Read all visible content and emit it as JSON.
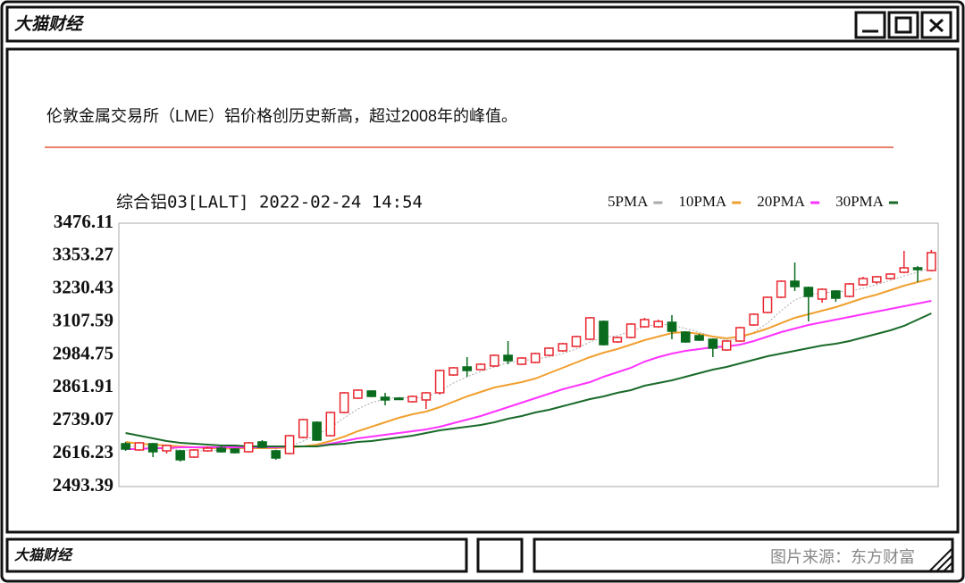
{
  "window": {
    "title": "大猫财经"
  },
  "headline": "伦敦金属交易所（LME）铝价格创历史新高，超过2008年的峰值。",
  "footer": {
    "brand": "大猫财经",
    "source": "图片来源：东方财富"
  },
  "chart_data": {
    "type": "candlestick",
    "title": "综合铝03[LALT] 2022-02-24 14:54",
    "ylim": [
      2493.39,
      3476.11
    ],
    "yticks": [
      3476.11,
      3353.27,
      3230.43,
      3107.59,
      2984.75,
      2861.91,
      2739.07,
      2616.23,
      2493.39
    ],
    "grid": false,
    "up_color": "#e8262e",
    "down_color": "#0a6b1e",
    "open": [
      2653.3,
      2630,
      2653.3,
      2626.7,
      2626.7,
      2603.3,
      2626.7,
      2636.7,
      2633.4,
      2623.3,
      2660,
      2626.7,
      2616.7,
      2676.7,
      2733.3,
      2683.3,
      2769.9,
      2823.2,
      2849.9,
      2826.6,
      2823.2,
      2809.9,
      2816.6,
      2843.2,
      2909.8,
      2939.8,
      2929.8,
      2943.2,
      2983.1,
      2949.8,
      2956.5,
      2983.1,
      2999.8,
      3016.4,
      3043.1,
      3109.7,
      3033.1,
      3049.8,
      3089.7,
      3089.7,
      3106.4,
      3069.7,
      3056.4,
      3043.1,
      3003.1,
      3036.4,
      3096.4,
      3143.0,
      3199.7,
      3259.6,
      3236.3,
      3193.0,
      3223.0,
      3203.0,
      3246.3,
      3256.3,
      3269.6,
      3293.0,
      3309.6,
      3299.6
    ],
    "high": [
      2660,
      2660,
      2656.7,
      2650,
      2630,
      2633.4,
      2643.3,
      2643.3,
      2636.7,
      2660,
      2666.7,
      2630,
      2686.6,
      2746.6,
      2736.6,
      2773.3,
      2846.6,
      2856.5,
      2853.2,
      2843.2,
      2826.6,
      2833.2,
      2846.6,
      2929.8,
      2939.8,
      2976.5,
      2953.2,
      2986.4,
      3036.4,
      2976.5,
      2993.1,
      3013.1,
      3029.7,
      3056.4,
      3126.4,
      3113.1,
      3053.1,
      3103.1,
      3123.1,
      3116.4,
      3133.1,
      3073.1,
      3063.1,
      3046.4,
      3039.8,
      3089.7,
      3139.7,
      3203.0,
      3263.0,
      3329.6,
      3239.6,
      3233.0,
      3226.3,
      3253.0,
      3276.3,
      3279.6,
      3289.6,
      3372.9,
      3316.3,
      3376.2
    ],
    "low": [
      2626.7,
      2626.7,
      2603.3,
      2616.7,
      2586.7,
      2600,
      2623.3,
      2620,
      2616.7,
      2620,
      2636.7,
      2593.4,
      2613.3,
      2673.3,
      2663.3,
      2680,
      2766.6,
      2819.9,
      2826.6,
      2796.6,
      2816.6,
      2806.6,
      2783.2,
      2836.6,
      2906.5,
      2903.2,
      2926.5,
      2939.8,
      2949.8,
      2946.5,
      2953.2,
      2979.8,
      2996.5,
      3013.1,
      3039.8,
      3019.8,
      3029.8,
      3046.4,
      3086.4,
      3086.4,
      3043.1,
      3029.8,
      3036.4,
      2976.5,
      2999.8,
      3033.1,
      3093.1,
      3139.7,
      3196.3,
      3223.0,
      3109.7,
      3179.7,
      3183.0,
      3199.7,
      3243.0,
      3249.6,
      3266.3,
      3289.6,
      3256.3,
      3296.3
    ],
    "close": [
      2633.4,
      2656.7,
      2623.3,
      2646.7,
      2593.4,
      2630,
      2636.7,
      2623.3,
      2620,
      2656.7,
      2640,
      2600,
      2683.3,
      2743.3,
      2666.7,
      2769.9,
      2843.2,
      2853.2,
      2829.9,
      2816.6,
      2819.9,
      2829.9,
      2843.2,
      2926.5,
      2936.5,
      2926.5,
      2949.8,
      2983.1,
      2963.2,
      2973.1,
      2989.8,
      3009.8,
      3026.4,
      3053.1,
      3123.1,
      3023.1,
      3049.8,
      3099.7,
      3116.4,
      3109.7,
      3073.1,
      3033.1,
      3039.8,
      3009.8,
      3036.4,
      3086.4,
      3136.4,
      3199.7,
      3259.6,
      3239.6,
      3203.0,
      3229.6,
      3196.3,
      3249.6,
      3269.6,
      3276.3,
      3286.3,
      3309.6,
      3303.0,
      3366.3
    ],
    "ma_series": [
      {
        "name": "5PMA",
        "color": "#aaaaaa",
        "values": [
          2643.3,
          2643.3,
          2640,
          2636.7,
          2630,
          2626.7,
          2626.7,
          2630,
          2633.4,
          2636.7,
          2640,
          2633.4,
          2643.3,
          2663.3,
          2686.6,
          2713.3,
          2749.9,
          2783.2,
          2806.6,
          2819.9,
          2826.6,
          2823.2,
          2826.6,
          2849.9,
          2879.9,
          2903.2,
          2923.2,
          2939.8,
          2956.5,
          2963.2,
          2969.9,
          2976.5,
          2989.8,
          3006.4,
          3033.1,
          3049.8,
          3056.4,
          3073.1,
          3089.7,
          3099.7,
          3096.4,
          3083.1,
          3069.7,
          3053.1,
          3039.8,
          3043.1,
          3069.7,
          3103.4,
          3149.7,
          3189.7,
          3209.7,
          3216.3,
          3219.6,
          3223.0,
          3233.0,
          3246.3,
          3263.0,
          3279.6,
          3293.0,
          3309.6
        ]
      },
      {
        "name": "10PMA",
        "color": "#f0a030",
        "values": [
          2660,
          2653.3,
          2650,
          2646.7,
          2643.3,
          2640,
          2636.7,
          2636.7,
          2636.7,
          2636.7,
          2636.7,
          2636.7,
          2640,
          2643.3,
          2650,
          2663.3,
          2679.9,
          2699.9,
          2716.6,
          2733.3,
          2749.9,
          2763.3,
          2773.3,
          2789.9,
          2809.9,
          2829.9,
          2846.6,
          2863.2,
          2873.2,
          2883.2,
          2896.5,
          2916.5,
          2936.5,
          2956.5,
          2976.5,
          2993.1,
          3006.4,
          3023.1,
          3039.8,
          3053.1,
          3066.4,
          3069.7,
          3063.1,
          3053.1,
          3046.4,
          3053.1,
          3066.4,
          3083.1,
          3103.4,
          3123.1,
          3136.4,
          3149.7,
          3163.0,
          3179.7,
          3196.3,
          3209.7,
          3226.3,
          3243.0,
          3256.3,
          3269.6
        ]
      },
      {
        "name": "20PMA",
        "color": "#ff33ff",
        "values": [
          2633.4,
          2633.4,
          2636.7,
          2636.7,
          2640,
          2640,
          2640,
          2640,
          2640,
          2640,
          2640,
          2640,
          2643.3,
          2643.3,
          2643.3,
          2653.3,
          2663.3,
          2673.3,
          2679.9,
          2686.6,
          2693.3,
          2699.9,
          2706.6,
          2716.6,
          2729.9,
          2743.3,
          2756.6,
          2773.3,
          2789.9,
          2806.6,
          2823.2,
          2839.9,
          2856.5,
          2869.9,
          2883.2,
          2903.2,
          2919.8,
          2936.5,
          2959.8,
          2976.5,
          2989.8,
          2999.8,
          3006.4,
          3013.1,
          3016.4,
          3023.1,
          3036.4,
          3053.1,
          3069.7,
          3083.1,
          3096.4,
          3106.4,
          3116.4,
          3126.4,
          3136.4,
          3146.4,
          3156.4,
          3166.4,
          3176.4,
          3186.3
        ]
      },
      {
        "name": "30PMA",
        "color": "#1a6b2a",
        "values": [
          2693.3,
          2683.3,
          2673.3,
          2663.3,
          2656.7,
          2653.3,
          2650,
          2646.7,
          2646.7,
          2643.3,
          2643.3,
          2643.3,
          2643.3,
          2643.3,
          2643.3,
          2650,
          2653.3,
          2660,
          2663.3,
          2670,
          2676.7,
          2683.3,
          2693.3,
          2703.3,
          2710,
          2716.6,
          2723.3,
          2733.3,
          2746.6,
          2756.6,
          2769.9,
          2779.9,
          2793.2,
          2806.6,
          2819.9,
          2829.9,
          2843.2,
          2853.2,
          2869.9,
          2879.9,
          2889.9,
          2903.2,
          2916.5,
          2929.8,
          2939.8,
          2953.2,
          2966.5,
          2979.8,
          2989.8,
          2999.8,
          3009.8,
          3019.8,
          3026.4,
          3036.4,
          3049.8,
          3063.1,
          3076.4,
          3093.1,
          3116.4,
          3139.7
        ]
      }
    ]
  }
}
